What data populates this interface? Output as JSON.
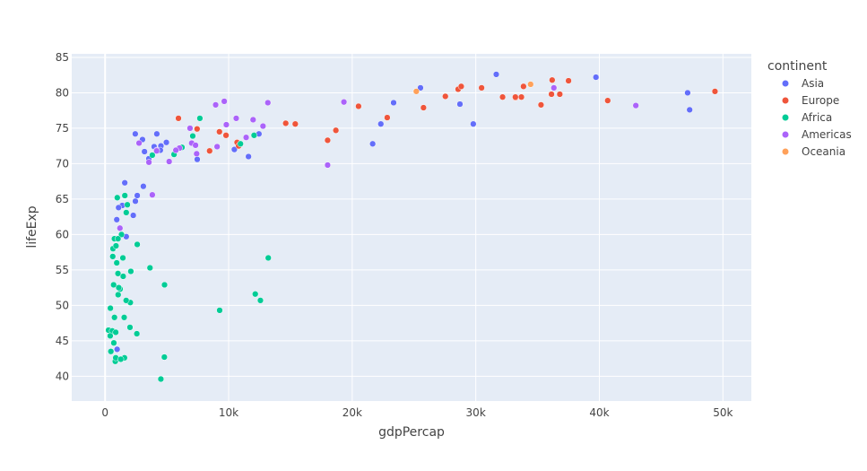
{
  "chart_data": {
    "type": "scatter",
    "xlabel": "gdpPercap",
    "ylabel": "lifeExp",
    "xlim": [
      -2700,
      52300
    ],
    "ylim": [
      36.5,
      85.5
    ],
    "xticks": [
      {
        "value": 0,
        "label": "0"
      },
      {
        "value": 10000,
        "label": "10k"
      },
      {
        "value": 20000,
        "label": "20k"
      },
      {
        "value": 30000,
        "label": "30k"
      },
      {
        "value": 40000,
        "label": "40k"
      },
      {
        "value": 50000,
        "label": "50k"
      }
    ],
    "yticks": [
      40,
      45,
      50,
      55,
      60,
      65,
      70,
      75,
      80,
      85
    ],
    "grid": true,
    "legend": {
      "title": "continent",
      "placement": "right"
    },
    "series": [
      {
        "name": "Asia",
        "color": "#636efa",
        "points": [
          [
            975,
            43.8
          ],
          [
            29796,
            75.6
          ],
          [
            1391,
            64.1
          ],
          [
            1713,
            59.7
          ],
          [
            4959,
            73.0
          ],
          [
            39725,
            82.2
          ],
          [
            2452,
            64.7
          ],
          [
            3541,
            70.7
          ],
          [
            3540,
            70.7
          ],
          [
            11606,
            71.0
          ],
          [
            25523,
            80.7
          ],
          [
            31656,
            82.6
          ],
          [
            4519,
            72.5
          ],
          [
            1593,
            67.3
          ],
          [
            23348,
            78.6
          ],
          [
            47307,
            77.6
          ],
          [
            4471,
            71.9
          ],
          [
            10461,
            72.0
          ],
          [
            12452,
            74.2
          ],
          [
            3096,
            66.8
          ],
          [
            944,
            62.1
          ],
          [
            1091,
            63.8
          ],
          [
            22316,
            75.6
          ],
          [
            2605,
            65.5
          ],
          [
            3190,
            71.7
          ],
          [
            21655,
            72.8
          ],
          [
            47143,
            80.0
          ],
          [
            3970,
            72.4
          ],
          [
            4185,
            74.2
          ],
          [
            28718,
            78.4
          ],
          [
            7458,
            70.6
          ],
          [
            2442,
            74.2
          ],
          [
            3025,
            73.4
          ],
          [
            2281,
            62.7
          ]
        ]
      },
      {
        "name": "Europe",
        "color": "#ef553b",
        "points": [
          [
            5937,
            76.4
          ],
          [
            36126,
            79.8
          ],
          [
            33693,
            79.4
          ],
          [
            7446,
            74.9
          ],
          [
            10681,
            73.0
          ],
          [
            14619,
            75.7
          ],
          [
            22833,
            76.5
          ],
          [
            35278,
            78.3
          ],
          [
            33207,
            79.3
          ],
          [
            30470,
            80.7
          ],
          [
            32170,
            79.4
          ],
          [
            27538,
            79.5
          ],
          [
            18009,
            73.3
          ],
          [
            36181,
            81.8
          ],
          [
            40676,
            78.9
          ],
          [
            28570,
            80.5
          ],
          [
            9254,
            74.5
          ],
          [
            36798,
            79.8
          ],
          [
            49357,
            80.2
          ],
          [
            15390,
            75.6
          ],
          [
            20510,
            78.1
          ],
          [
            10808,
            72.5
          ],
          [
            9786,
            74.0
          ],
          [
            18678,
            74.7
          ],
          [
            25768,
            77.9
          ],
          [
            28821,
            80.9
          ],
          [
            33860,
            80.9
          ],
          [
            37506,
            81.7
          ],
          [
            8458,
            71.8
          ],
          [
            33203,
            79.4
          ]
        ]
      },
      {
        "name": "Africa",
        "color": "#00cc96",
        "points": [
          [
            6223,
            72.3
          ],
          [
            4797,
            42.7
          ],
          [
            1441,
            56.7
          ],
          [
            12570,
            50.7
          ],
          [
            1217,
            52.3
          ],
          [
            430,
            49.6
          ],
          [
            2042,
            50.4
          ],
          [
            706,
            44.7
          ],
          [
            1704,
            50.7
          ],
          [
            986,
            65.2
          ],
          [
            277,
            46.5
          ],
          [
            3633,
            55.3
          ],
          [
            1545,
            48.3
          ],
          [
            2082,
            54.8
          ],
          [
            5581,
            71.3
          ],
          [
            12154,
            51.6
          ],
          [
            641,
            58.0
          ],
          [
            690,
            52.9
          ],
          [
            13206,
            56.7
          ],
          [
            753,
            59.4
          ],
          [
            1328,
            60.0
          ],
          [
            943,
            56.0
          ],
          [
            579,
            46.4
          ],
          [
            1463,
            54.1
          ],
          [
            1569,
            42.6
          ],
          [
            415,
            45.7
          ],
          [
            12057,
            74.0
          ],
          [
            1045,
            59.4
          ],
          [
            759,
            48.3
          ],
          [
            1042,
            54.5
          ],
          [
            1803,
            64.2
          ],
          [
            10957,
            72.8
          ],
          [
            3820,
            71.2
          ],
          [
            824,
            42.1
          ],
          [
            4811,
            52.9
          ],
          [
            620,
            56.9
          ],
          [
            2014,
            46.9
          ],
          [
            7670,
            76.4
          ],
          [
            863,
            46.2
          ],
          [
            1598,
            65.5
          ],
          [
            1712,
            63.1
          ],
          [
            862,
            42.6
          ],
          [
            9270,
            49.3
          ],
          [
            2602,
            58.6
          ],
          [
            4513,
            39.6
          ],
          [
            1107,
            52.5
          ],
          [
            882,
            58.4
          ],
          [
            7093,
            73.9
          ],
          [
            1056,
            51.5
          ],
          [
            1271,
            42.4
          ],
          [
            470,
            43.5
          ],
          [
            2570,
            46.0
          ]
        ]
      },
      {
        "name": "Americas",
        "color": "#ab63fa",
        "points": [
          [
            12779,
            75.3
          ],
          [
            3822,
            65.6
          ],
          [
            9066,
            72.4
          ],
          [
            36319,
            80.7
          ],
          [
            13172,
            78.6
          ],
          [
            7007,
            72.9
          ],
          [
            9645,
            78.8
          ],
          [
            8948,
            78.3
          ],
          [
            6025,
            72.2
          ],
          [
            6873,
            75.0
          ],
          [
            5728,
            71.9
          ],
          [
            5186,
            70.3
          ],
          [
            4173,
            71.9
          ],
          [
            1202,
            60.9
          ],
          [
            3548,
            70.2
          ],
          [
            7321,
            72.6
          ],
          [
            11978,
            76.2
          ],
          [
            2749,
            72.9
          ],
          [
            9809,
            75.5
          ],
          [
            4173,
            71.8
          ],
          [
            7409,
            71.4
          ],
          [
            19328,
            78.7
          ],
          [
            18009,
            69.8
          ],
          [
            42952,
            78.2
          ],
          [
            10611,
            76.4
          ],
          [
            11416,
            73.7
          ]
        ]
      },
      {
        "name": "Oceania",
        "color": "#ffa15a",
        "points": [
          [
            34435,
            81.2
          ],
          [
            25185,
            80.2
          ]
        ]
      }
    ]
  }
}
